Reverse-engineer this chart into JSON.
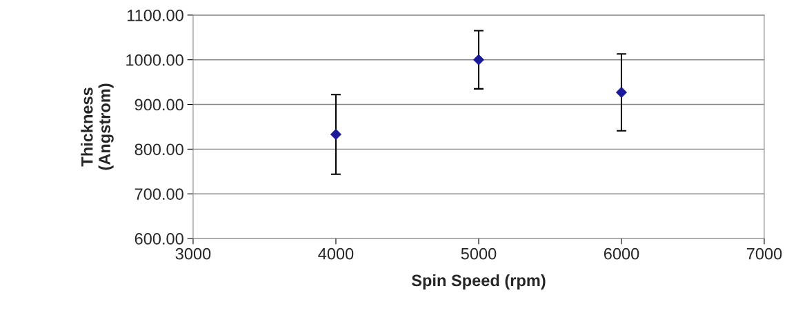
{
  "chart_data": {
    "type": "scatter",
    "xlabel": "Spin Speed (rpm)",
    "ylabel": "Thickness\n(Angstrom)",
    "x": [
      4000,
      5000,
      6000
    ],
    "values": [
      833,
      1000,
      927
    ],
    "errors": [
      89,
      65,
      86
    ],
    "color": "#1a1a99",
    "marker": "diamond",
    "xlim": [
      3000,
      7000
    ],
    "xticks": [
      3000,
      4000,
      5000,
      6000,
      7000
    ],
    "ylim": [
      600,
      1100
    ],
    "yticks": [
      {
        "value": 600,
        "label": "600.00"
      },
      {
        "value": 700,
        "label": "700.00"
      },
      {
        "value": 800,
        "label": "800.00"
      },
      {
        "value": 900,
        "label": "900.00"
      },
      {
        "value": 1000,
        "label": "1000.00"
      },
      {
        "value": 1100,
        "label": "1100.00"
      }
    ],
    "grid": "y",
    "legend": false
  }
}
